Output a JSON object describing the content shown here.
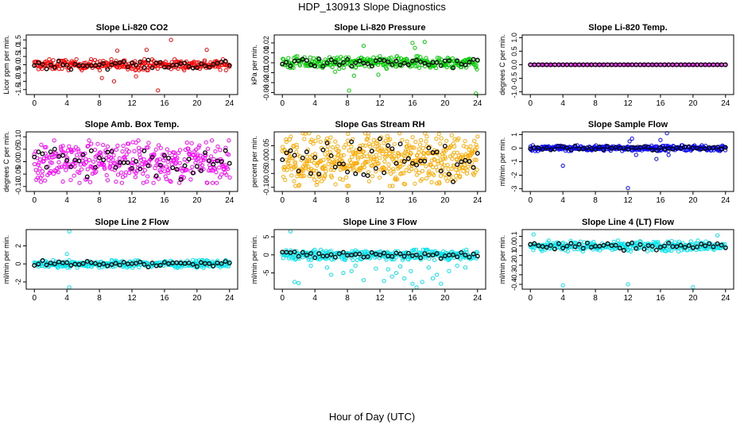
{
  "figure": {
    "title": "HDP_130913  Slope Diagnostics",
    "x_axis_label": "Hour of Day (UTC)"
  },
  "chart_data": [
    {
      "type": "scatter",
      "title": "Slope Li-820 CO2",
      "ylabel": "Licor ppm per min.",
      "xlim": [
        -1,
        25
      ],
      "ylim": [
        -1.8,
        1.8
      ],
      "x_ticks": [
        0,
        4,
        8,
        12,
        16,
        20,
        24
      ],
      "y_ticks": [
        -1.5,
        -1.0,
        -0.5,
        0.0,
        0.5,
        1.0,
        1.5
      ],
      "y_tick_labels": [
        "-1.5",
        "-1.0",
        "-0.5",
        "0.0",
        "0.5",
        "1.0",
        "1.5"
      ],
      "color": "#ff0000",
      "marker_color": "#000000",
      "spread": 0.35,
      "n": 300,
      "outliers": [
        [
          9.8,
          -1.0
        ],
        [
          10.2,
          0.85
        ],
        [
          12.5,
          -0.7
        ],
        [
          15.2,
          -1.55
        ],
        [
          16.8,
          1.5
        ],
        [
          13.8,
          0.9
        ],
        [
          21.2,
          0.9
        ],
        [
          8.3,
          -0.8
        ]
      ]
    },
    {
      "type": "scatter",
      "title": "Slope Li-820 Pressure",
      "ylabel": "kPa per min.",
      "xlim": [
        -1,
        25
      ],
      "ylim": [
        -0.032,
        0.028
      ],
      "x_ticks": [
        0,
        4,
        8,
        12,
        16,
        20,
        24
      ],
      "y_ticks": [
        -0.03,
        -0.02,
        -0.01,
        0.0,
        0.01,
        0.02
      ],
      "y_tick_labels": [
        "-0.03",
        "-0.02",
        "-0.01",
        "0.00",
        "0.01",
        "0.02"
      ],
      "color": "#00cc00",
      "marker_color": "#000000",
      "spread": 0.007,
      "n": 300,
      "outliers": [
        [
          8.2,
          -0.028
        ],
        [
          8.8,
          -0.013
        ],
        [
          11.8,
          -0.012
        ],
        [
          16.0,
          0.02
        ],
        [
          16.3,
          0.015
        ],
        [
          17.5,
          0.021
        ],
        [
          23.8,
          -0.031
        ],
        [
          10.0,
          0.017
        ],
        [
          6.5,
          -0.009
        ]
      ]
    },
    {
      "type": "scatter",
      "title": "Slope Li-820 Temp.",
      "ylabel": "degrees C per min.",
      "xlim": [
        -1,
        25
      ],
      "ylim": [
        -1.1,
        1.1
      ],
      "x_ticks": [
        0,
        4,
        8,
        12,
        16,
        20,
        24
      ],
      "y_ticks": [
        -1.0,
        -0.5,
        0.0,
        0.5,
        1.0
      ],
      "y_tick_labels": [
        "-1.0",
        "-0.5",
        "0.0",
        "0.5",
        "1.0"
      ],
      "color": "#ff00ff",
      "marker_color": "#000000",
      "spread": 0.0,
      "n": 130,
      "outliers": []
    },
    {
      "type": "scatter",
      "title": "Slope Amb. Box Temp.",
      "ylabel": "degrees C per min.",
      "xlim": [
        -1,
        25
      ],
      "ylim": [
        -0.12,
        0.12
      ],
      "x_ticks": [
        0,
        4,
        8,
        12,
        16,
        20,
        24
      ],
      "y_ticks": [
        -0.1,
        -0.05,
        0.0,
        0.05,
        0.1
      ],
      "y_tick_labels": [
        "-0.10",
        "-0.05",
        "0.00",
        "0.05",
        "0.10"
      ],
      "color": "#ff00ff",
      "marker_color": "#000000",
      "spread": 0.09,
      "n": 380,
      "outliers": []
    },
    {
      "type": "scatter",
      "title": "Slope Gas Stream RH",
      "ylabel": "percent per min.",
      "xlim": [
        -1,
        25
      ],
      "ylim": [
        -0.115,
        0.1
      ],
      "x_ticks": [
        0,
        4,
        8,
        12,
        16,
        20,
        24
      ],
      "y_ticks": [
        -0.1,
        -0.05,
        0.0,
        0.05
      ],
      "y_tick_labels": [
        "-0.10",
        "-0.05",
        "0.00",
        "0.05"
      ],
      "color": "#ffaa00",
      "marker_color": "#000000",
      "spread": 0.1,
      "n": 520,
      "outliers": []
    },
    {
      "type": "scatter",
      "title": "Slope Sample Flow",
      "ylabel": "ml/min per min.",
      "xlim": [
        -1,
        25
      ],
      "ylim": [
        -3.2,
        1.2
      ],
      "x_ticks": [
        0,
        4,
        8,
        12,
        16,
        20,
        24
      ],
      "y_ticks": [
        -3,
        -2,
        -1,
        0,
        1
      ],
      "y_tick_labels": [
        "-3",
        "-2",
        "-1",
        "0",
        "1"
      ],
      "color": "#0000ff",
      "marker_color": "#000000",
      "spread": 0.22,
      "n": 320,
      "outliers": [
        [
          4.0,
          -1.3
        ],
        [
          12.0,
          -2.95
        ],
        [
          16.8,
          1.1
        ],
        [
          12.5,
          0.7
        ],
        [
          15.5,
          -0.8
        ],
        [
          13.0,
          -0.5
        ],
        [
          16.0,
          0.6
        ],
        [
          12.2,
          0.5
        ],
        [
          17.0,
          -0.5
        ]
      ]
    },
    {
      "type": "scatter",
      "title": "Slope Line 2 Flow",
      "ylabel": "ml/min per min.",
      "xlim": [
        -1,
        25
      ],
      "ylim": [
        -2.8,
        3.8
      ],
      "x_ticks": [
        0,
        4,
        8,
        12,
        16,
        20,
        24
      ],
      "y_ticks": [
        -2,
        0,
        2
      ],
      "y_tick_labels": [
        "-2",
        "0",
        "2"
      ],
      "color": "#00e5ee",
      "marker_color": "#000000",
      "spread": 0.45,
      "n": 320,
      "outliers": [
        [
          4.3,
          3.6
        ],
        [
          4.3,
          -2.6
        ],
        [
          4.0,
          1.1
        ]
      ]
    },
    {
      "type": "scatter",
      "title": "Slope Line 3 Flow",
      "ylabel": "ml/min per min.",
      "xlim": [
        -1,
        25
      ],
      "ylim": [
        -9.5,
        7.0
      ],
      "x_ticks": [
        0,
        4,
        8,
        12,
        16,
        20,
        24
      ],
      "y_ticks": [
        -5,
        0,
        5
      ],
      "y_tick_labels": [
        "-5",
        "0",
        "5"
      ],
      "color": "#00e5ee",
      "marker_color": "#000000",
      "spread": 1.5,
      "n": 330,
      "outliers": [
        [
          1.5,
          -7.5
        ],
        [
          2.0,
          -7.8
        ],
        [
          6.0,
          -5.5
        ],
        [
          7.5,
          -5.0
        ],
        [
          10.0,
          -7.0
        ],
        [
          12.5,
          -7.2
        ],
        [
          13.5,
          -6.0
        ],
        [
          14.0,
          -5.0
        ],
        [
          15.0,
          -6.5
        ],
        [
          16.5,
          -9.0
        ],
        [
          17.2,
          -7.5
        ],
        [
          18.5,
          -6.5
        ],
        [
          19.0,
          -5.5
        ],
        [
          19.5,
          -8.0
        ],
        [
          20.5,
          -4.5
        ],
        [
          1.0,
          6.5
        ],
        [
          8.5,
          -4.5
        ],
        [
          13.0,
          -4.0
        ],
        [
          15.8,
          -4.5
        ],
        [
          5.5,
          -3.5
        ],
        [
          11.5,
          -3.8
        ],
        [
          18.0,
          -3.5
        ],
        [
          21.5,
          -3.0
        ],
        [
          22.5,
          -3.5
        ],
        [
          3.5,
          -3.0
        ],
        [
          9.0,
          -3.0
        ],
        [
          14.5,
          -3.2
        ],
        [
          16.0,
          -8.0
        ]
      ]
    },
    {
      "type": "scatter",
      "title": "Slope Line 4 (LT) Flow",
      "ylabel": "ml/min per min.",
      "xlim": [
        -1,
        25
      ],
      "ylim": [
        -0.45,
        0.17
      ],
      "x_ticks": [
        0,
        4,
        8,
        12,
        16,
        20,
        24
      ],
      "y_ticks": [
        -0.4,
        -0.3,
        -0.2,
        -0.1,
        0.0,
        0.1
      ],
      "y_tick_labels": [
        "-0.4",
        "-0.3",
        "-0.2",
        "-0.1",
        "0.0",
        "0.1"
      ],
      "color": "#00e5ee",
      "marker_color": "#000000",
      "spread": 0.06,
      "n": 320,
      "outliers": [
        [
          4.0,
          -0.41
        ],
        [
          12.0,
          -0.4
        ],
        [
          20.0,
          -0.43
        ],
        [
          0.4,
          0.12
        ],
        [
          23.0,
          0.11
        ]
      ]
    }
  ]
}
